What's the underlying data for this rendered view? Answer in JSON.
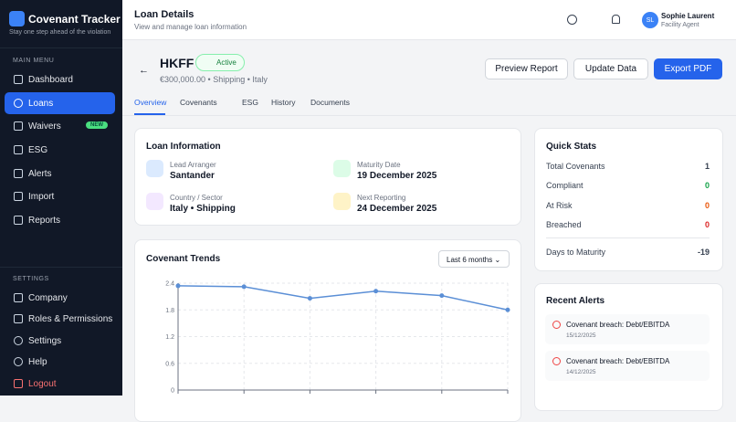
{
  "sidebar": {
    "brand": "Covenant Tracker",
    "tagline": "Stay one step ahead of the violation",
    "main_menu_title": "MAIN MENU",
    "main_menu": [
      {
        "label": "Dashboard"
      },
      {
        "label": "Loans"
      },
      {
        "label": "Waivers",
        "badge": "NEW"
      },
      {
        "label": "ESG"
      },
      {
        "label": "Alerts"
      },
      {
        "label": "Import"
      },
      {
        "label": "Reports"
      }
    ],
    "settings_title": "SETTINGS",
    "settings_menu": [
      "Company",
      "Roles & Permissions",
      "Settings",
      "Help",
      "Logout"
    ]
  },
  "header": {
    "title": "Loan Details",
    "subtitle": "View and manage loan information",
    "user_initials": "SL",
    "user_name": "Sophie Laurent",
    "user_role": "Facility Agent"
  },
  "loan": {
    "code": "HKFF",
    "status": "Active",
    "summary": "€300,000.00 • Shipping • Italy",
    "actions": [
      "Preview Report",
      "Update Data",
      "Export PDF"
    ]
  },
  "tabs": [
    "Overview",
    "Covenants",
    "ESG",
    "History",
    "Documents"
  ],
  "loan_information": {
    "title": "Loan Information",
    "fields": [
      {
        "label": "Lead Arranger",
        "value": "Santander"
      },
      {
        "label": "Maturity Date",
        "value": "19 December 2025"
      },
      {
        "label": "Country / Sector",
        "value": "Italy • Shipping"
      },
      {
        "label": "Next Reporting",
        "value": "24 December 2025"
      }
    ]
  },
  "quick_stats": {
    "title": "Quick Stats",
    "rows": [
      {
        "label": "Total Covenants",
        "value": 1
      },
      {
        "label": "Compliant",
        "value": 0
      },
      {
        "label": "At Risk",
        "value": 0
      },
      {
        "label": "Breached",
        "value": 0
      },
      {
        "label": "Days to Maturity",
        "value": -19
      }
    ]
  },
  "chart_data": {
    "type": "line",
    "title": "Covenant Trends",
    "range_select": "Last 6 months",
    "categories": [
      null,
      null,
      null,
      null,
      null,
      null
    ],
    "series": [
      {
        "color": "#5b8fd6",
        "values": [
          2.34,
          2.32,
          2.06,
          2.22,
          2.12,
          1.8
        ]
      }
    ],
    "ylim": [
      0,
      2.4
    ],
    "yticks": [
      0,
      0.6,
      1.2,
      1.8,
      2.4
    ],
    "grid": true
  },
  "recent_alerts": {
    "title": "Recent Alerts",
    "items": [
      {
        "text": "Covenant breach: Debt/EBITDA",
        "date": "15/12/2025"
      },
      {
        "text": "Covenant breach: Debt/EBITDA",
        "date": "14/12/2025"
      }
    ]
  }
}
